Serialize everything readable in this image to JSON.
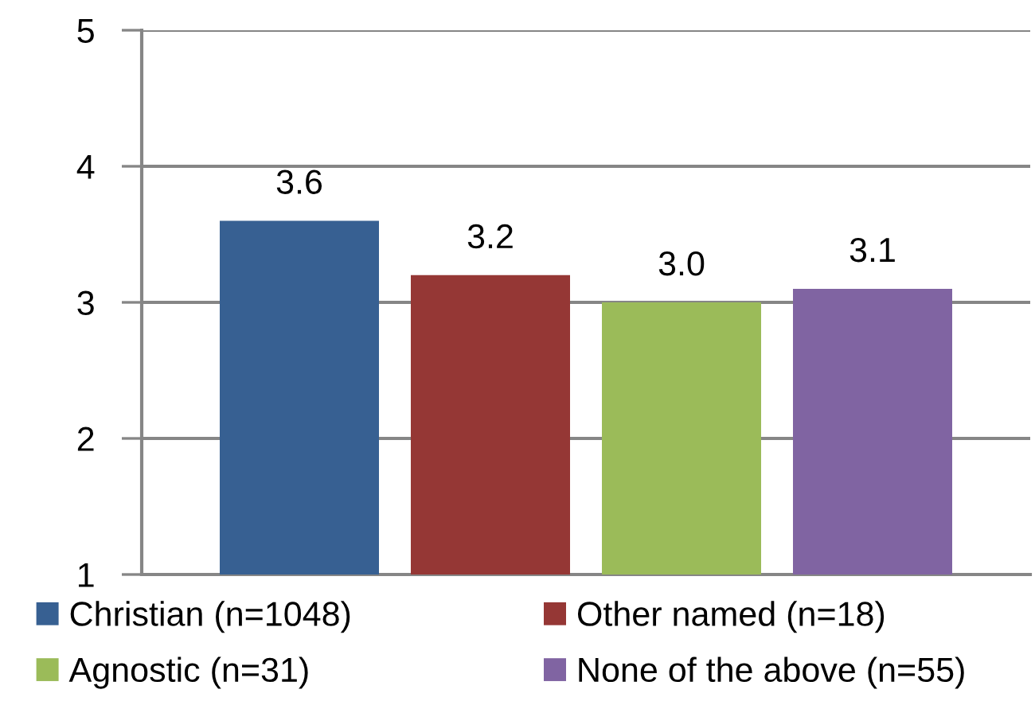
{
  "chart_data": {
    "type": "bar",
    "categories": [
      null
    ],
    "ylim": [
      1,
      5
    ],
    "yticks": [
      1,
      2,
      3,
      4,
      5
    ],
    "grid": "y",
    "legend": "bottom",
    "series": [
      {
        "name": "Christian (n=1048)",
        "color": "#376092",
        "values": [
          3.6
        ],
        "value_labels": [
          "3.6"
        ]
      },
      {
        "name": "Other named (n=18)",
        "color": "#953735",
        "values": [
          3.2
        ],
        "value_labels": [
          "3.2"
        ]
      },
      {
        "name": "Agnostic (n=31)",
        "color": "#9bbb59",
        "values": [
          3.0
        ],
        "value_labels": [
          "3.0"
        ]
      },
      {
        "name": "None of the above (n=55)",
        "color": "#8064a2",
        "values": [
          3.1
        ],
        "value_labels": [
          "3.1"
        ]
      }
    ]
  }
}
